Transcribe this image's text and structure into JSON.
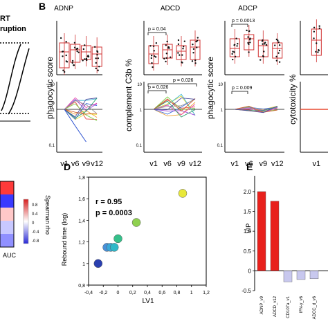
{
  "panel_labels": {
    "b": "B",
    "d": "D",
    "e": "E"
  },
  "fragments": {
    "art_label": "RT",
    "interruption_label": "ruption",
    "heatmap_xlabel": "AUC",
    "colorbar_title": "Spearman rho",
    "colorbar_ticks": [
      "0.8",
      "0.4",
      "0",
      "-0.4",
      "-0.8"
    ]
  },
  "panel_b": {
    "titles": [
      "ADNP",
      "ADCD",
      "ADCP"
    ],
    "ylabels": [
      "phagocytic score",
      "complement C3b %",
      "phagocytic score",
      "cytotoxicity %"
    ],
    "x_ticks": [
      "v1",
      "v6",
      "v9",
      "v12"
    ],
    "annotations": {
      "adcd_top": "p = 0.04",
      "adcd_bottom_1": "p = 0.026",
      "adcd_bottom_2": "p = 0.026",
      "adcp_top": "p = 0.0013",
      "adcp_bottom": "p = 0.009"
    },
    "log_ticks": [
      "10",
      "1",
      "0.1"
    ]
  },
  "chart_data": [
    {
      "type": "scatter",
      "panel": "D",
      "xlabel": "LV1",
      "ylabel": "Rebound time (log)",
      "annotations": [
        "r = 0.95",
        "p = 0.0003"
      ],
      "xlim": [
        -0.4,
        1.2
      ],
      "ylim": [
        0.8,
        1.8
      ],
      "x_ticks": [
        "-0,4",
        "-0,2",
        "0",
        "0,2",
        "0,4",
        "0,6",
        "0,8",
        "1",
        "1,2"
      ],
      "y_ticks": [
        "0,8",
        "1",
        "1,2",
        "1,4",
        "1,6",
        "1,8"
      ],
      "points": [
        {
          "x": -0.27,
          "y": 1.0,
          "color": "#2a3fb0"
        },
        {
          "x": -0.15,
          "y": 1.15,
          "color": "#4a90d9"
        },
        {
          "x": -0.1,
          "y": 1.15,
          "color": "#3aa8d8"
        },
        {
          "x": -0.05,
          "y": 1.15,
          "color": "#2fb8c8"
        },
        {
          "x": 0.0,
          "y": 1.23,
          "color": "#35c08a"
        },
        {
          "x": 0.25,
          "y": 1.38,
          "color": "#8fd14f"
        },
        {
          "x": 0.88,
          "y": 1.65,
          "color": "#e8e83a"
        }
      ]
    },
    {
      "type": "bar",
      "panel": "E",
      "ylabel": "VIP",
      "ylim": [
        -0.5,
        2.4
      ],
      "y_ticks": [
        "2.0",
        "1.5",
        "1.0",
        "0.5",
        "0",
        "-0.5"
      ],
      "categories": [
        "ADNP_v9",
        "ADCD_v12",
        "CD107a_v1",
        "IFN-γ_v6",
        "ADCC_d_v6"
      ],
      "values": [
        2.0,
        1.76,
        -0.28,
        -0.22,
        -0.2
      ],
      "colors": [
        "#e8201c",
        "#e8201c",
        "#c8c8ee",
        "#c8c8ee",
        "#c8c8ee"
      ]
    }
  ]
}
